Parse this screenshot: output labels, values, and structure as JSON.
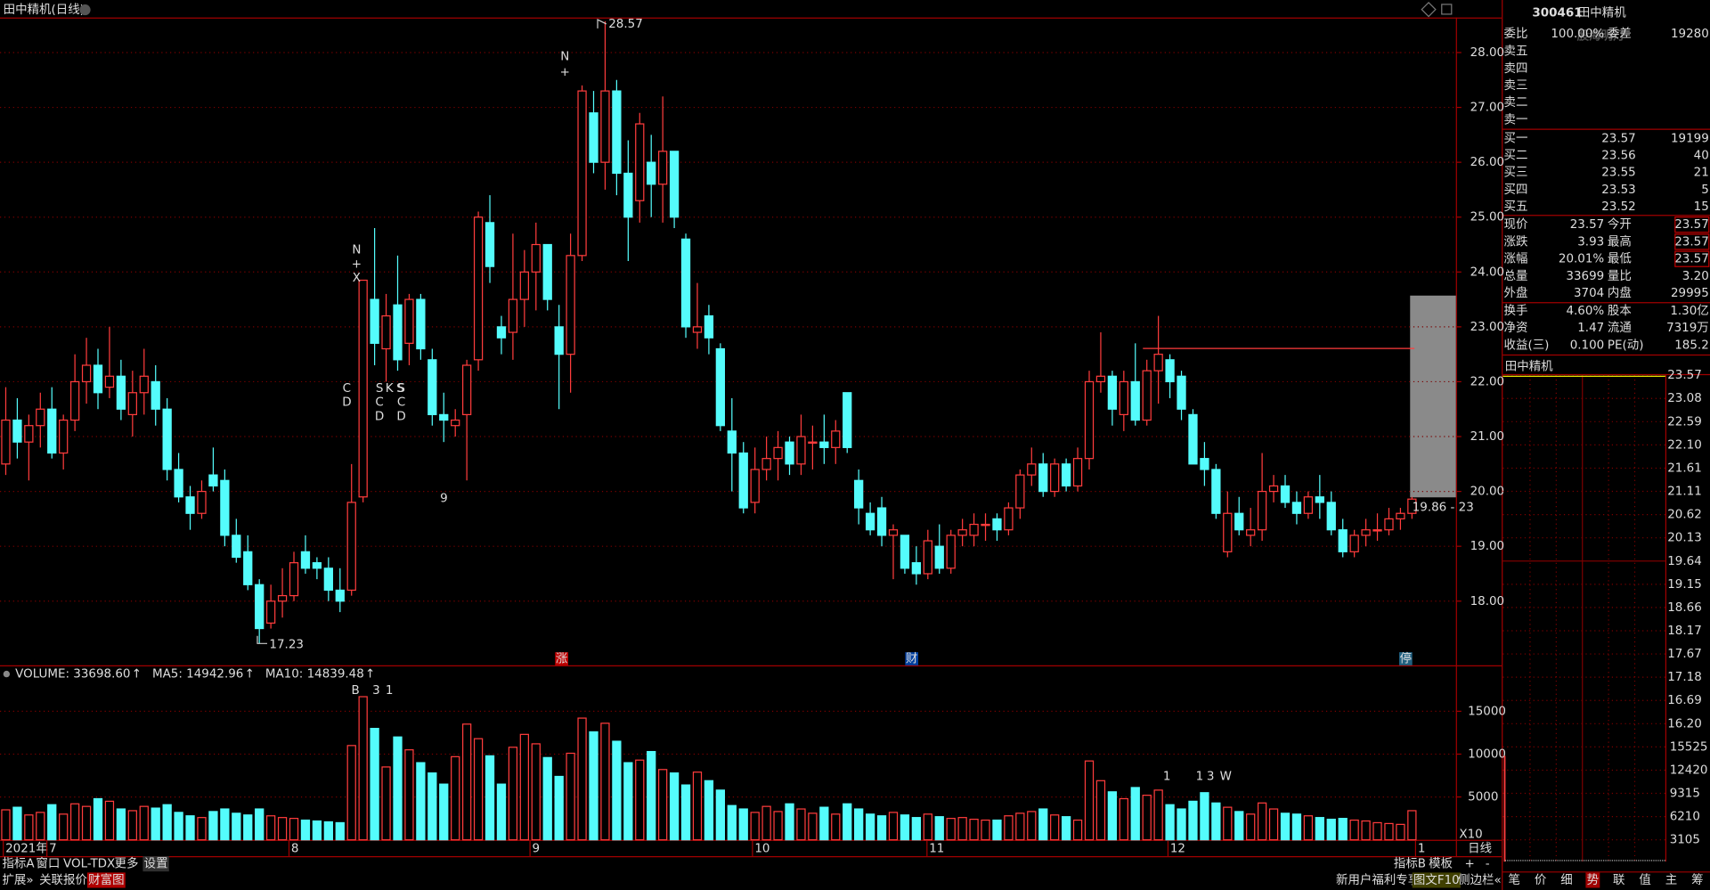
{
  "window_title": "田中精机(日线)",
  "chart_data": {
    "type": "candlestick",
    "ylim": [
      16.83,
      28.62
    ],
    "yticks": [
      {
        "value": 18,
        "label": "18.00"
      },
      {
        "value": 19,
        "label": "19.00"
      },
      {
        "value": 20,
        "label": "20.00"
      },
      {
        "value": 21,
        "label": "21.00"
      },
      {
        "value": 22,
        "label": "22.00"
      },
      {
        "value": 23,
        "label": "23.00"
      },
      {
        "value": 24,
        "label": "24.00"
      },
      {
        "value": 25,
        "label": "25.00"
      },
      {
        "value": 26,
        "label": "26.00"
      },
      {
        "value": 27,
        "label": "27.00"
      },
      {
        "value": 28,
        "label": "28.00"
      }
    ],
    "up_color": "#ff3c3c",
    "down_color": "#54fcfc",
    "ohlc": [
      [
        20.5,
        21.9,
        20.3,
        21.3
      ],
      [
        21.3,
        21.7,
        20.6,
        20.9
      ],
      [
        20.9,
        21.4,
        20.2,
        21.2
      ],
      [
        21.2,
        21.8,
        20.8,
        21.5
      ],
      [
        21.5,
        21.9,
        20.6,
        20.7
      ],
      [
        20.7,
        21.4,
        20.4,
        21.3
      ],
      [
        21.3,
        22.5,
        21.1,
        22.0
      ],
      [
        22.0,
        22.8,
        21.6,
        22.3
      ],
      [
        22.3,
        22.6,
        21.5,
        21.8
      ],
      [
        21.9,
        23.0,
        21.7,
        22.1
      ],
      [
        22.1,
        22.4,
        21.3,
        21.5
      ],
      [
        21.4,
        22.2,
        21.0,
        21.8
      ],
      [
        21.8,
        22.6,
        21.4,
        22.1
      ],
      [
        22.0,
        22.3,
        21.2,
        21.5
      ],
      [
        21.5,
        21.7,
        20.2,
        20.4
      ],
      [
        20.4,
        20.7,
        19.8,
        19.9
      ],
      [
        19.9,
        20.1,
        19.3,
        19.6
      ],
      [
        19.6,
        20.2,
        19.5,
        20.0
      ],
      [
        20.3,
        20.8,
        20.0,
        20.1
      ],
      [
        20.2,
        20.4,
        19.0,
        19.2
      ],
      [
        19.2,
        19.5,
        18.7,
        18.8
      ],
      [
        18.9,
        19.2,
        18.2,
        18.3
      ],
      [
        18.3,
        18.4,
        17.23,
        17.5
      ],
      [
        17.6,
        18.3,
        17.5,
        18.0
      ],
      [
        18.0,
        18.6,
        17.7,
        18.1
      ],
      [
        18.1,
        18.9,
        18.0,
        18.7
      ],
      [
        18.9,
        19.2,
        18.5,
        18.6
      ],
      [
        18.7,
        18.8,
        18.4,
        18.6
      ],
      [
        18.6,
        18.8,
        18.0,
        18.2
      ],
      [
        18.2,
        18.6,
        17.8,
        18.0
      ],
      [
        18.2,
        20.5,
        18.1,
        19.8
      ],
      [
        19.9,
        23.85,
        19.8,
        23.85
      ],
      [
        23.5,
        24.8,
        22.3,
        22.7
      ],
      [
        22.6,
        23.6,
        22.0,
        23.2
      ],
      [
        23.4,
        24.3,
        22.2,
        22.4
      ],
      [
        22.7,
        23.6,
        22.3,
        23.5
      ],
      [
        23.5,
        23.6,
        22.4,
        22.6
      ],
      [
        22.4,
        22.6,
        21.2,
        21.4
      ],
      [
        21.4,
        21.8,
        20.9,
        21.3
      ],
      [
        21.2,
        21.5,
        21.0,
        21.3
      ],
      [
        21.4,
        22.4,
        20.2,
        22.3
      ],
      [
        22.4,
        25.1,
        22.2,
        25.0
      ],
      [
        24.9,
        25.4,
        23.8,
        24.1
      ],
      [
        23.0,
        23.2,
        22.5,
        22.8
      ],
      [
        22.9,
        24.7,
        22.4,
        23.5
      ],
      [
        23.5,
        24.4,
        23.0,
        24.0
      ],
      [
        24.0,
        24.9,
        23.3,
        24.5
      ],
      [
        24.5,
        24.5,
        23.3,
        23.5
      ],
      [
        23.0,
        23.4,
        21.5,
        22.5
      ],
      [
        22.5,
        24.7,
        21.8,
        24.3
      ],
      [
        24.3,
        27.4,
        24.2,
        27.3
      ],
      [
        26.9,
        27.3,
        25.8,
        26.0
      ],
      [
        26.0,
        28.57,
        25.5,
        27.3
      ],
      [
        27.3,
        27.5,
        25.4,
        25.8
      ],
      [
        25.8,
        26.4,
        24.2,
        25.0
      ],
      [
        25.3,
        26.9,
        24.9,
        26.7
      ],
      [
        26.0,
        26.5,
        25.0,
        25.6
      ],
      [
        25.6,
        27.2,
        24.9,
        26.2
      ],
      [
        26.2,
        26.2,
        24.8,
        25.0
      ],
      [
        24.6,
        24.7,
        22.8,
        23.0
      ],
      [
        22.9,
        23.8,
        22.6,
        23.0
      ],
      [
        23.2,
        23.4,
        22.5,
        22.8
      ],
      [
        22.6,
        22.7,
        21.1,
        21.2
      ],
      [
        21.1,
        21.7,
        20.0,
        20.7
      ],
      [
        20.7,
        20.9,
        19.6,
        19.7
      ],
      [
        19.8,
        20.8,
        19.6,
        20.4
      ],
      [
        20.4,
        21.0,
        20.2,
        20.6
      ],
      [
        20.6,
        21.1,
        20.2,
        20.8
      ],
      [
        20.9,
        21.0,
        20.3,
        20.5
      ],
      [
        20.5,
        21.4,
        20.3,
        21.0
      ],
      [
        20.9,
        21.2,
        20.4,
        20.9
      ],
      [
        20.9,
        21.4,
        20.5,
        20.8
      ],
      [
        20.8,
        21.3,
        20.5,
        21.1
      ],
      [
        21.8,
        21.8,
        20.7,
        20.8
      ],
      [
        20.2,
        20.4,
        19.4,
        19.7
      ],
      [
        19.6,
        19.8,
        19.2,
        19.3
      ],
      [
        19.7,
        19.9,
        19.0,
        19.2
      ],
      [
        19.2,
        19.4,
        18.4,
        19.3
      ],
      [
        19.2,
        19.2,
        18.5,
        18.6
      ],
      [
        18.7,
        19.0,
        18.3,
        18.5
      ],
      [
        18.5,
        19.3,
        18.4,
        19.1
      ],
      [
        19.0,
        19.4,
        18.5,
        18.6
      ],
      [
        18.6,
        19.3,
        18.5,
        19.2
      ],
      [
        19.2,
        19.5,
        19.0,
        19.3
      ],
      [
        19.2,
        19.6,
        19.0,
        19.4
      ],
      [
        19.4,
        19.6,
        19.1,
        19.4
      ],
      [
        19.5,
        19.6,
        19.1,
        19.3
      ],
      [
        19.3,
        19.8,
        19.2,
        19.7
      ],
      [
        19.7,
        20.4,
        19.5,
        20.3
      ],
      [
        20.3,
        20.8,
        20.1,
        20.5
      ],
      [
        20.5,
        20.7,
        19.9,
        20.0
      ],
      [
        20.0,
        20.6,
        19.9,
        20.5
      ],
      [
        20.5,
        20.6,
        20.0,
        20.1
      ],
      [
        20.1,
        20.8,
        20.0,
        20.6
      ],
      [
        20.6,
        22.2,
        20.4,
        22.0
      ],
      [
        22.0,
        22.9,
        21.8,
        22.1
      ],
      [
        22.1,
        22.2,
        21.2,
        21.5
      ],
      [
        21.4,
        22.2,
        21.1,
        22.0
      ],
      [
        22.0,
        22.7,
        21.2,
        21.3
      ],
      [
        21.3,
        22.4,
        21.2,
        22.2
      ],
      [
        22.2,
        23.2,
        21.6,
        22.5
      ],
      [
        22.4,
        22.5,
        21.7,
        22.0
      ],
      [
        22.1,
        22.2,
        21.3,
        21.5
      ],
      [
        21.4,
        21.5,
        20.5,
        20.5
      ],
      [
        20.6,
        20.9,
        20.1,
        20.4
      ],
      [
        20.4,
        20.5,
        19.5,
        19.6
      ],
      [
        18.9,
        20.0,
        18.8,
        19.6
      ],
      [
        19.6,
        19.9,
        19.2,
        19.3
      ],
      [
        19.2,
        19.7,
        19.0,
        19.3
      ],
      [
        19.3,
        20.7,
        19.1,
        20.0
      ],
      [
        20.0,
        20.3,
        19.8,
        20.1
      ],
      [
        20.1,
        20.3,
        19.7,
        19.8
      ],
      [
        19.8,
        20.0,
        19.4,
        19.6
      ],
      [
        19.6,
        20.0,
        19.5,
        19.9
      ],
      [
        19.9,
        20.3,
        19.5,
        19.8
      ],
      [
        19.8,
        20.0,
        19.2,
        19.3
      ],
      [
        19.3,
        19.5,
        18.8,
        18.9
      ],
      [
        18.9,
        19.3,
        18.8,
        19.2
      ],
      [
        19.2,
        19.5,
        19.0,
        19.3
      ],
      [
        19.3,
        19.6,
        19.1,
        19.3
      ],
      [
        19.3,
        19.7,
        19.2,
        19.5
      ],
      [
        19.5,
        19.7,
        19.3,
        19.6
      ],
      [
        19.6,
        19.9,
        19.5,
        19.86
      ]
    ],
    "high_label": "28.57",
    "low_label": "17.23",
    "last_label": "19.86 - 23",
    "signals": [
      "N",
      "+",
      "N",
      "+",
      "X",
      "C",
      "D",
      "S",
      "K",
      "S",
      "C",
      "D",
      "S",
      "C",
      "D",
      "9"
    ],
    "markers": [
      "涨",
      "财",
      "停"
    ],
    "x_labels": [
      "2021年",
      "7",
      "8",
      "9",
      "10",
      "11",
      "12",
      "1"
    ]
  },
  "volume_data": {
    "type": "bar",
    "header": "VOLUME: 33698.60",
    "ma5": "MA5: 14942.96",
    "ma10": "MA10: 14839.48",
    "arrow": "↑",
    "unit": "X10",
    "signals": [
      "B",
      "3",
      "1",
      "1",
      "1",
      "3",
      "W"
    ],
    "ylim": [
      0,
      19850
    ],
    "yticks": [
      5000,
      10000,
      15000
    ],
    "values": [
      3500,
      3800,
      2900,
      3200,
      4100,
      3000,
      4200,
      3900,
      4800,
      4500,
      3600,
      3400,
      3900,
      3700,
      4100,
      3200,
      2800,
      2600,
      3300,
      3600,
      3100,
      2900,
      3600,
      2800,
      2600,
      2500,
      2300,
      2200,
      2100,
      2000,
      11000,
      16700,
      13000,
      8500,
      12000,
      10500,
      9000,
      7800,
      6500,
      9700,
      13500,
      11800,
      9800,
      6500,
      10800,
      12300,
      11200,
      9600,
      7400,
      10100,
      14200,
      12600,
      13600,
      11500,
      9000,
      9300,
      10300,
      8200,
      7800,
      6400,
      7900,
      6900,
      5800,
      4000,
      3600,
      3200,
      3900,
      3300,
      4200,
      3600,
      3100,
      3800,
      3000,
      4200,
      3600,
      3000,
      2800,
      3200,
      2900,
      2600,
      3000,
      2700,
      2500,
      2600,
      2400,
      2300,
      2300,
      2800,
      3100,
      3300,
      3600,
      2900,
      2700,
      2300,
      9200,
      6900,
      5600,
      4800,
      6100,
      5200,
      5800,
      4100,
      3600,
      4500,
      5500,
      4300,
      3800,
      3300,
      3000,
      4300,
      3600,
      3100,
      3000,
      2800,
      2600,
      2400,
      2500,
      2300,
      2200,
      2000,
      1900,
      1800,
      3400
    ],
    "period": "日线"
  },
  "quote": {
    "code": "300461",
    "name": "田中精机",
    "watermark": "股海明灯",
    "ratio": [
      "委比",
      "100.00%",
      "委差",
      "19280"
    ],
    "asks": [
      "卖五",
      "卖四",
      "卖三",
      "卖二",
      "卖一"
    ],
    "bids": [
      [
        "买一",
        "23.57",
        "19199"
      ],
      [
        "买二",
        "23.56",
        "40"
      ],
      [
        "买三",
        "23.55",
        "21"
      ],
      [
        "买四",
        "23.53",
        "5"
      ],
      [
        "买五",
        "23.52",
        "15"
      ]
    ],
    "stats": [
      [
        "现价",
        "23.57",
        "今开",
        "23.57"
      ],
      [
        "涨跌",
        "3.93",
        "最高",
        "23.57"
      ],
      [
        "涨幅",
        "20.01%",
        "最低",
        "23.57"
      ],
      [
        "总量",
        "33699",
        "量比",
        "3.20"
      ],
      [
        "外盘",
        "3704",
        "内盘",
        "29995"
      ]
    ],
    "stats2": [
      [
        "换手",
        "4.60%",
        "股本",
        "1.30亿"
      ],
      [
        "净资",
        "1.47",
        "流通",
        "7319万"
      ],
      [
        "收益(三)",
        "0.100",
        "PE(动)",
        "185.2"
      ]
    ]
  },
  "intraday": {
    "title": "田中精机",
    "price_ticks": [
      "23.57",
      "23.08",
      "22.59",
      "22.10",
      "21.61",
      "21.11",
      "20.62",
      "20.13",
      "19.64",
      "19.15",
      "18.66",
      "18.17",
      "17.67",
      "17.18",
      "16.69",
      "16.20"
    ],
    "volume_ticks": [
      "15525",
      "12420",
      "9315",
      "6210",
      "3105"
    ]
  },
  "toolbar": {
    "row1": [
      "指标A",
      "窗口",
      "VOL-TDX",
      "更多",
      "设置"
    ],
    "row2": [
      "扩展»",
      "关联报价",
      "财富图"
    ],
    "right1": [
      "指标B",
      "模板",
      "+",
      "-"
    ],
    "right2": [
      "新用户福利专享",
      "图文F10",
      "侧边栏«"
    ],
    "side_tabs": [
      "笔",
      "价",
      "细",
      "势",
      "联",
      "值",
      "主",
      "筹"
    ]
  }
}
